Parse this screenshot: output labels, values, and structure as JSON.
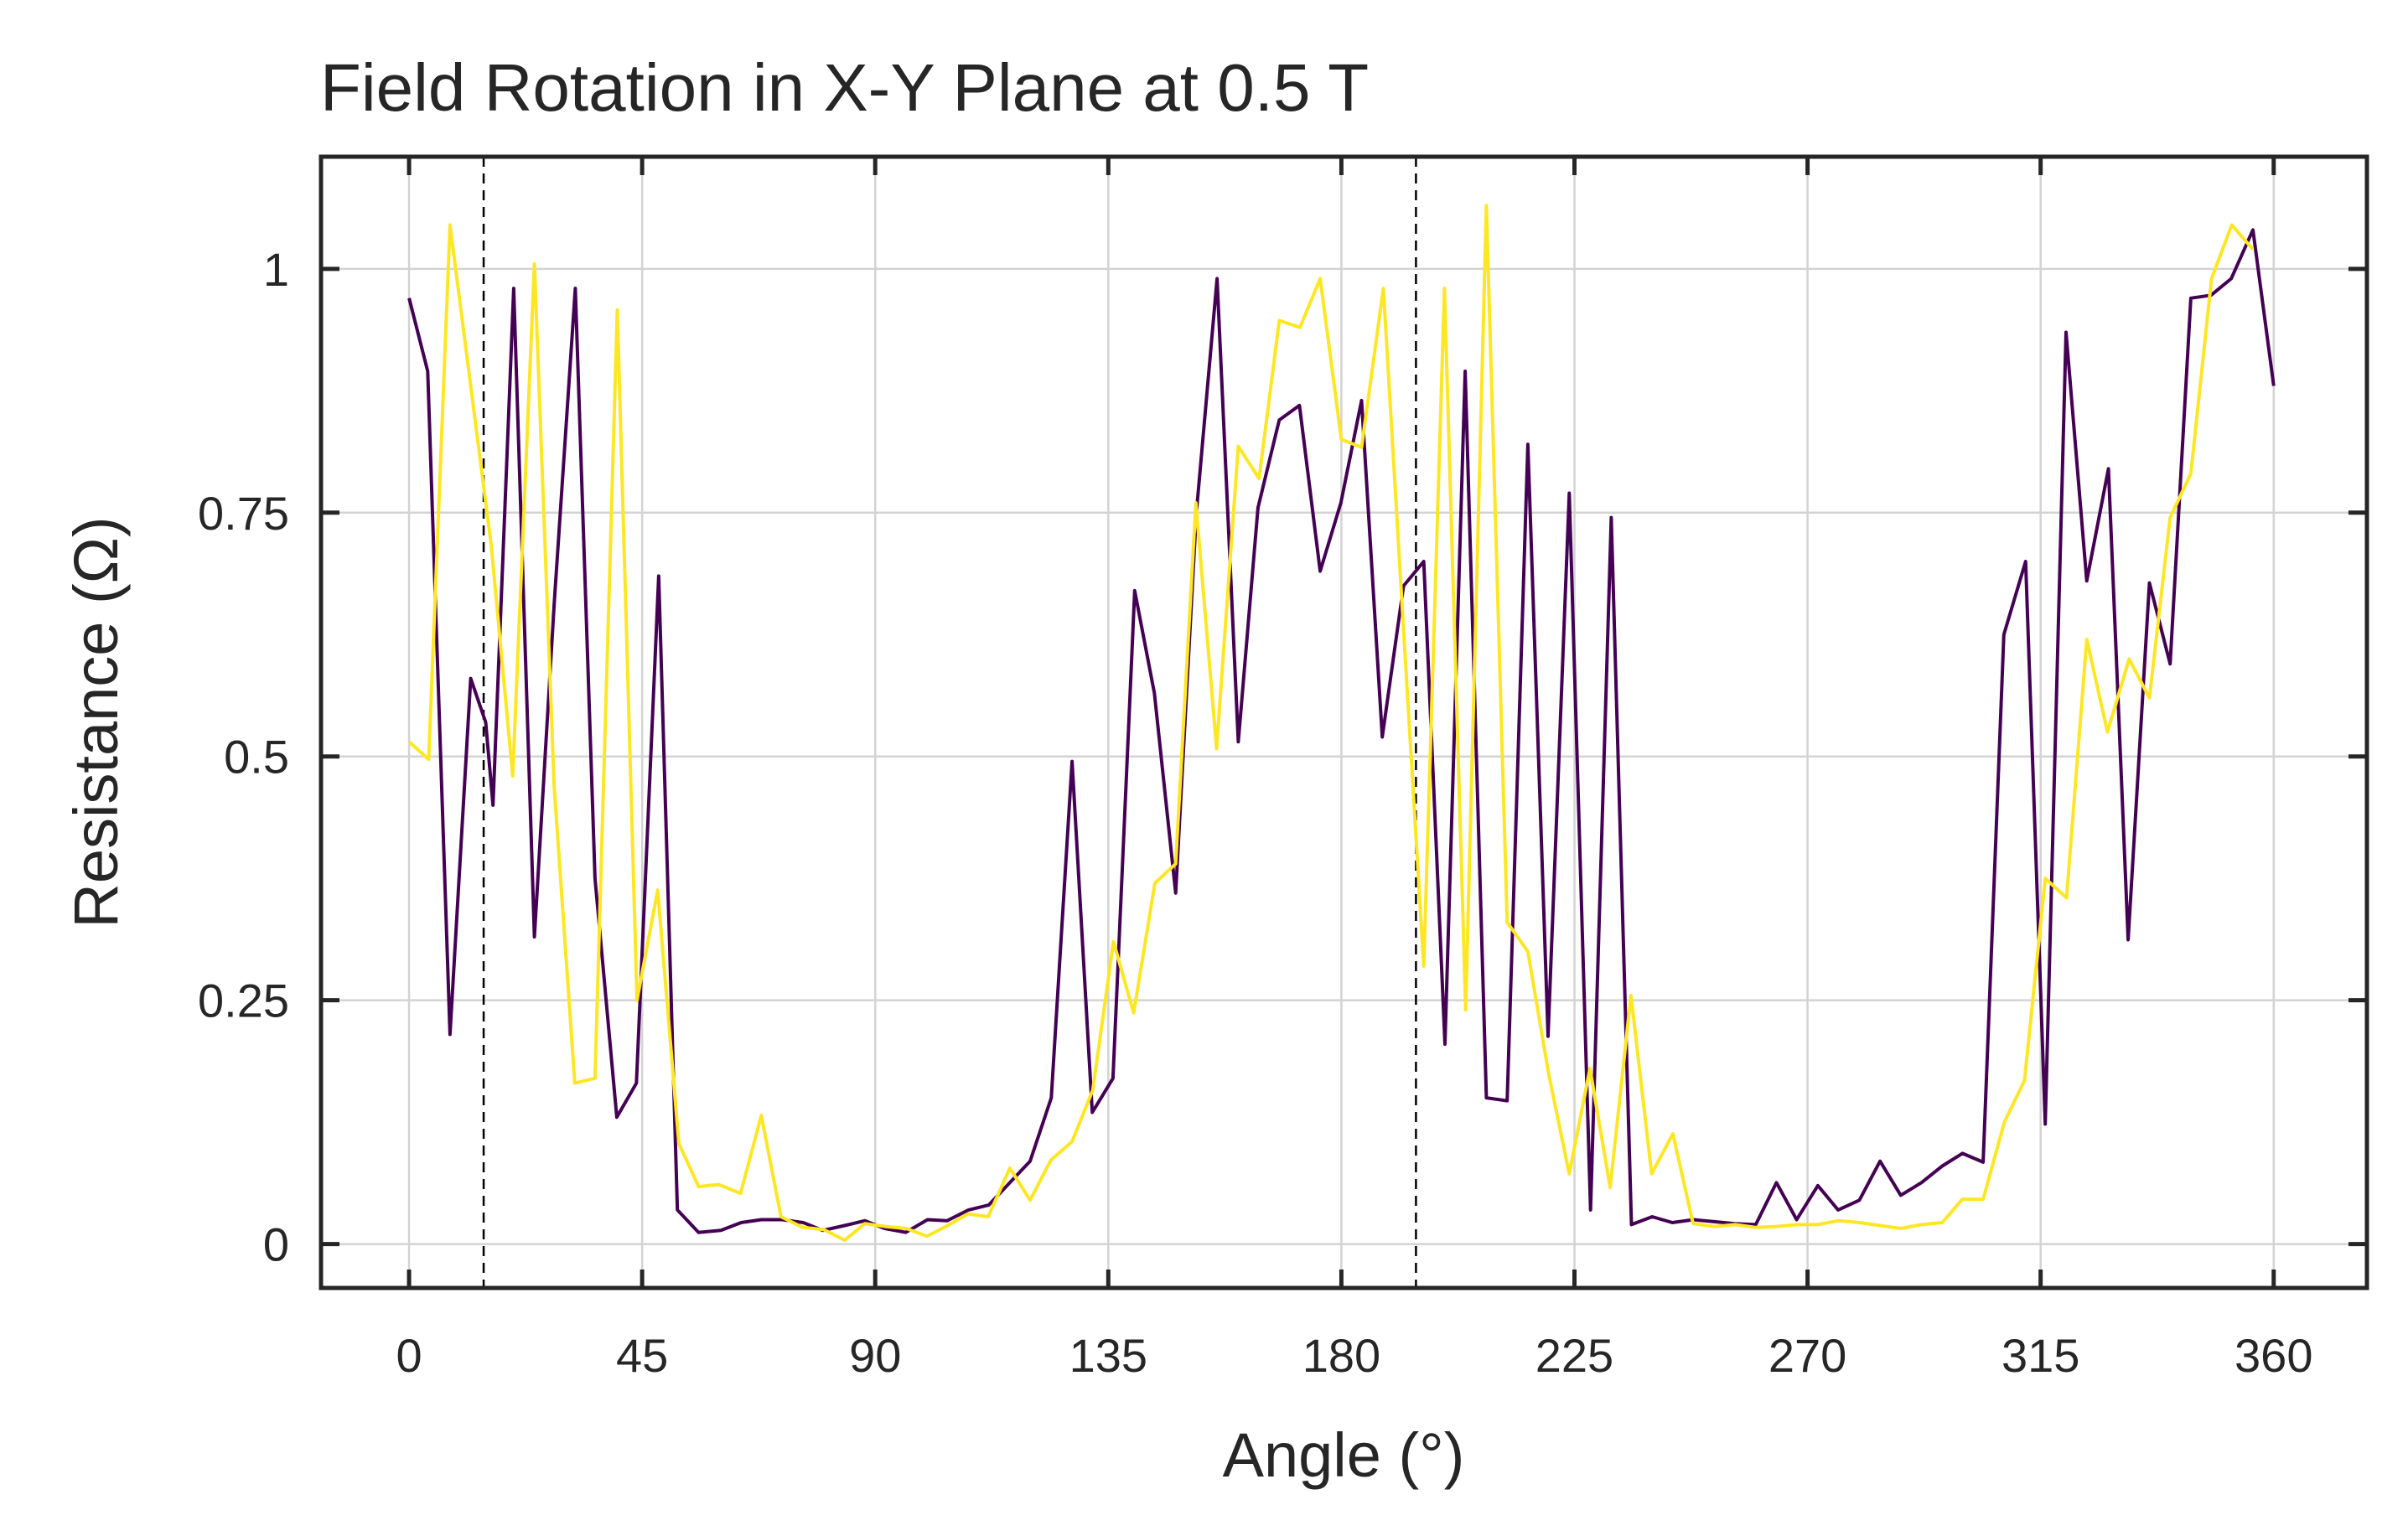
{
  "chart_data": {
    "type": "line",
    "title": "Field Rotation in X-Y Plane at 0.5 T",
    "xlabel": "Angle (°)",
    "ylabel": "Resistance (Ω)",
    "xlim": [
      -17,
      378
    ],
    "ylim": [
      -0.045,
      1.115
    ],
    "xticks": [
      0,
      45,
      90,
      135,
      180,
      225,
      270,
      315,
      360
    ],
    "xtick_labels": [
      "0",
      "45",
      "90",
      "135",
      "180",
      "225",
      "270",
      "315",
      "360"
    ],
    "yticks": [
      0,
      0.25,
      0.5,
      0.75,
      1
    ],
    "ytick_labels": [
      "0",
      "0.25",
      "0.5",
      "0.75",
      "1"
    ],
    "grid": true,
    "vertical_lines": [
      14.4,
      194.4
    ],
    "series": [
      {
        "color": "#440154",
        "x": [
          0,
          3.6,
          7.9,
          11.9,
          14.8,
          16.2,
          20.2,
          24.2,
          28.0,
          32.1,
          35.9,
          40.1,
          43.9,
          48.2,
          51.8,
          55.9,
          60.2,
          64.1,
          68.0,
          72.0,
          76.1,
          79.9,
          84.1,
          88.0,
          91.8,
          95.9,
          100.1,
          103.9,
          108.0,
          111.9,
          115.8,
          119.9,
          124.0,
          128.0,
          131.9,
          135.9,
          140.1,
          143.9,
          148.0,
          152.0,
          156.0,
          160.1,
          163.9,
          168.0,
          171.9,
          175.9,
          179.9,
          183.9,
          187.9,
          192.0,
          195.9,
          200.0,
          203.9,
          208.0,
          212.0,
          216.0,
          219.9,
          224.0,
          228.1,
          232.1,
          236.0,
          240.0,
          243.9,
          248.0,
          252.0,
          255.9,
          260.0,
          264.0,
          267.9,
          272.0,
          275.9,
          280.0,
          284.0,
          288.0,
          292.0,
          296.0,
          299.9,
          303.9,
          307.9,
          312.1,
          315.9,
          319.9,
          323.9,
          328.1,
          331.9,
          336.0,
          340.0,
          344.0,
          347.9,
          351.8,
          356.0,
          360.0
        ],
        "y": [
          0.97,
          0.895,
          0.215,
          0.58,
          0.535,
          0.45,
          0.98,
          0.315,
          0.655,
          0.98,
          0.375,
          0.13,
          0.165,
          0.685,
          0.035,
          0.012,
          0.014,
          0.022,
          0.025,
          0.025,
          0.022,
          0.014,
          0.019,
          0.024,
          0.016,
          0.012,
          0.025,
          0.024,
          0.035,
          0.04,
          0.062,
          0.085,
          0.15,
          0.495,
          0.135,
          0.17,
          0.67,
          0.565,
          0.36,
          0.75,
          0.99,
          0.515,
          0.755,
          0.845,
          0.86,
          0.69,
          0.76,
          0.865,
          0.52,
          0.675,
          0.7,
          0.205,
          0.895,
          0.15,
          0.147,
          0.82,
          0.213,
          0.77,
          0.035,
          0.745,
          0.02,
          0.028,
          0.022,
          0.025,
          0.023,
          0.021,
          0.02,
          0.063,
          0.025,
          0.06,
          0.035,
          0.045,
          0.085,
          0.05,
          0.063,
          0.08,
          0.093,
          0.084,
          0.625,
          0.7,
          0.123,
          0.935,
          0.68,
          0.795,
          0.312,
          0.678,
          0.595,
          0.97,
          0.973,
          0.99,
          1.04,
          0.88
        ]
      },
      {
        "color": "#fde725",
        "x": [
          0,
          3.8,
          7.9,
          11.9,
          15.9,
          20.0,
          24.2,
          28.0,
          32.0,
          35.9,
          40.2,
          44.0,
          48.0,
          52.1,
          55.9,
          59.8,
          64.0,
          68.0,
          71.8,
          76.0,
          80.0,
          84.1,
          88.0,
          92.0,
          96.0,
          100.0,
          104.0,
          107.9,
          111.8,
          116.0,
          119.9,
          123.9,
          128.0,
          132.0,
          136.0,
          139.9,
          144.0,
          148.0,
          151.9,
          155.9,
          160.1,
          164.1,
          168.0,
          172.0,
          175.9,
          180.0,
          183.9,
          188.1,
          191.9,
          195.9,
          199.9,
          204.0,
          208.0,
          212.0,
          216.0,
          220.0,
          224.0,
          228.0,
          231.9,
          235.9,
          239.9,
          244.0,
          247.9,
          252.0,
          256.0,
          260.0,
          263.9,
          268.0,
          272.0,
          276.0,
          280.0,
          284.0,
          288.0,
          292.0,
          296.0,
          299.9,
          303.9,
          308.0,
          311.9,
          315.9,
          320.0,
          323.9,
          327.9,
          332.1,
          336.0,
          340.0,
          344.0,
          348.0,
          351.9,
          356.0
        ],
        "y": [
          0.515,
          0.497,
          1.045,
          0.88,
          0.715,
          0.48,
          1.005,
          0.47,
          0.165,
          0.17,
          0.958,
          0.25,
          0.363,
          0.103,
          0.059,
          0.061,
          0.052,
          0.132,
          0.028,
          0.017,
          0.015,
          0.004,
          0.021,
          0.018,
          0.016,
          0.008,
          0.019,
          0.031,
          0.028,
          0.078,
          0.045,
          0.086,
          0.105,
          0.158,
          0.31,
          0.237,
          0.37,
          0.39,
          0.76,
          0.508,
          0.818,
          0.785,
          0.947,
          0.94,
          0.99,
          0.825,
          0.817,
          0.98,
          0.64,
          0.285,
          0.98,
          0.24,
          1.065,
          0.33,
          0.3,
          0.175,
          0.072,
          0.18,
          0.058,
          0.255,
          0.072,
          0.113,
          0.021,
          0.018,
          0.02,
          0.017,
          0.018,
          0.02,
          0.02,
          0.024,
          0.022,
          0.019,
          0.016,
          0.02,
          0.022,
          0.046,
          0.046,
          0.125,
          0.168,
          0.375,
          0.355,
          0.62,
          0.525,
          0.6,
          0.56,
          0.745,
          0.79,
          0.99,
          1.045,
          1.02
        ]
      }
    ]
  }
}
